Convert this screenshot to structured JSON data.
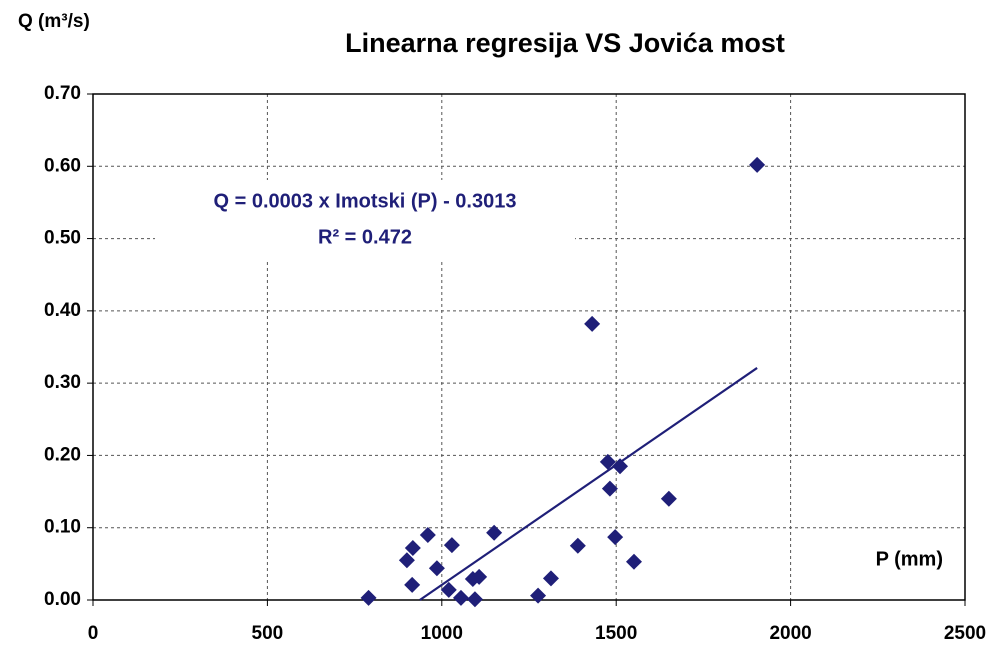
{
  "chart_data": {
    "type": "scatter",
    "title": "Linearna regresija VS Jovića most",
    "y_label": "Q (m³/s)",
    "x_label": "P (mm)",
    "annotations": [
      "Q = 0.0003 x Imotski (P)  - 0.3013",
      "R² = 0.472"
    ],
    "color": "#1f1f78",
    "x": [
      790,
      900,
      917,
      915,
      960,
      986,
      1020,
      1029,
      1055,
      1089,
      1107,
      1095,
      1150,
      1276,
      1313,
      1390,
      1431,
      1476,
      1482,
      1497,
      1511,
      1551,
      1651,
      1904
    ],
    "values": [
      0.003,
      0.055,
      0.072,
      0.021,
      0.09,
      0.044,
      0.014,
      0.076,
      0.003,
      0.029,
      0.032,
      0.001,
      0.093,
      0.006,
      0.03,
      0.075,
      0.382,
      0.191,
      0.154,
      0.087,
      0.185,
      0.053,
      0.14,
      0.602
    ],
    "trendline": {
      "x": [
        937,
        1904
      ],
      "y": [
        0,
        0.321
      ]
    },
    "xlim": [
      0,
      2500
    ],
    "xticks": [
      0,
      500,
      1000,
      1500,
      2000,
      2500
    ],
    "ylim": [
      0,
      0.7
    ],
    "yticks": [
      {
        "value": 0,
        "label": "0.00"
      },
      {
        "value": 0.1,
        "label": "0.10"
      },
      {
        "value": 0.2,
        "label": "0.20"
      },
      {
        "value": 0.3,
        "label": "0.30"
      },
      {
        "value": 0.4,
        "label": "0.40"
      },
      {
        "value": 0.5,
        "label": "0.50"
      },
      {
        "value": 0.6,
        "label": "0.60"
      },
      {
        "value": 0.7,
        "label": "0.70"
      }
    ],
    "grid": true
  }
}
